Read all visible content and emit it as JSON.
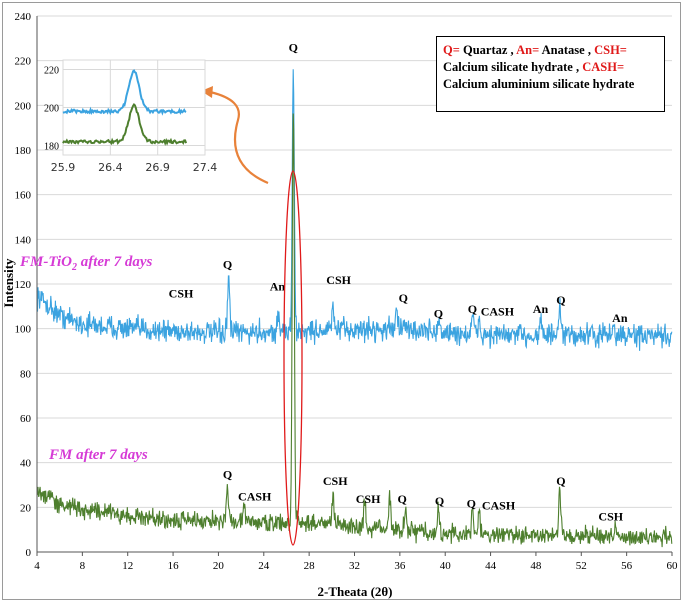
{
  "chart_data": {
    "type": "line",
    "xlabel": "2-Theata (2θ)",
    "ylabel": "Intensity",
    "xlim": [
      4,
      60
    ],
    "ylim": [
      0,
      240
    ],
    "xticks": [
      "4",
      "8",
      "12",
      "16",
      "20",
      "24",
      "28",
      "32",
      "36",
      "40",
      "44",
      "48",
      "52",
      "56",
      "60"
    ],
    "yticks": [
      "0",
      "20",
      "40",
      "60",
      "80",
      "100",
      "120",
      "140",
      "160",
      "180",
      "200",
      "220",
      "240"
    ],
    "series": [
      {
        "name": "FM-TiO2 after 7 days",
        "label_main": "FM-TiO",
        "label_sub": "2",
        "label_rest": " after 7 days",
        "color": "#3ba3e0",
        "baseline": [
          [
            4,
            115
          ],
          [
            6,
            106
          ],
          [
            8,
            102
          ],
          [
            12,
            100
          ],
          [
            20,
            98
          ],
          [
            28,
            99
          ],
          [
            36,
            100
          ],
          [
            40,
            98
          ],
          [
            44,
            97
          ],
          [
            50,
            97
          ],
          [
            56,
            97
          ],
          [
            60,
            96
          ]
        ],
        "noise": 3.2,
        "peaks": [
          [
            20.9,
            123
          ],
          [
            25.3,
            106
          ],
          [
            26.6,
            213
          ],
          [
            30.1,
            110
          ],
          [
            35.7,
            111
          ],
          [
            39.4,
            104
          ],
          [
            42.4,
            106
          ],
          [
            43.0,
            104
          ],
          [
            48.4,
            105
          ],
          [
            50.1,
            108
          ],
          [
            54.8,
            101
          ]
        ]
      },
      {
        "name": "FM after 7 days",
        "label_main": "FM after 7 days",
        "color": "#4e7f2e",
        "baseline": [
          [
            4,
            27
          ],
          [
            6,
            22
          ],
          [
            8,
            19
          ],
          [
            12,
            16
          ],
          [
            16,
            14
          ],
          [
            20,
            14
          ],
          [
            24,
            13
          ],
          [
            28,
            13
          ],
          [
            32,
            12
          ],
          [
            36,
            10
          ],
          [
            40,
            8
          ],
          [
            44,
            8
          ],
          [
            50,
            7
          ],
          [
            56,
            7
          ],
          [
            60,
            7
          ]
        ],
        "noise": 2.6,
        "peaks": [
          [
            20.8,
            30
          ],
          [
            22.3,
            20
          ],
          [
            26.6,
            200
          ],
          [
            30.1,
            25
          ],
          [
            32.9,
            20
          ],
          [
            35.1,
            24
          ],
          [
            36.5,
            20
          ],
          [
            39.4,
            21
          ],
          [
            42.4,
            19
          ],
          [
            43.0,
            17
          ],
          [
            50.1,
            28
          ],
          [
            55.0,
            11
          ]
        ]
      }
    ],
    "annotations": [
      {
        "text": "Q",
        "x": 26.6,
        "y": 224
      },
      {
        "text": "Q",
        "x": 20.8,
        "y": 127
      },
      {
        "text": "CSH",
        "x": 16.7,
        "y": 114
      },
      {
        "text": "An",
        "x": 25.2,
        "y": 117
      },
      {
        "text": "CSH",
        "x": 30.6,
        "y": 120
      },
      {
        "text": "Q",
        "x": 36.3,
        "y": 112
      },
      {
        "text": "Q",
        "x": 39.4,
        "y": 105
      },
      {
        "text": "Q",
        "x": 42.4,
        "y": 107
      },
      {
        "text": "CASH",
        "x": 44.6,
        "y": 106
      },
      {
        "text": "An",
        "x": 48.4,
        "y": 107
      },
      {
        "text": "Q",
        "x": 50.2,
        "y": 111
      },
      {
        "text": "An",
        "x": 55.4,
        "y": 103
      },
      {
        "text": "Q",
        "x": 20.8,
        "y": 33
      },
      {
        "text": "CASH",
        "x": 23.2,
        "y": 23
      },
      {
        "text": "CSH",
        "x": 30.3,
        "y": 30
      },
      {
        "text": "CSH",
        "x": 33.2,
        "y": 22
      },
      {
        "text": "Q",
        "x": 36.2,
        "y": 22
      },
      {
        "text": "Q",
        "x": 39.5,
        "y": 21
      },
      {
        "text": "Q",
        "x": 42.3,
        "y": 20
      },
      {
        "text": "CASH",
        "x": 44.7,
        "y": 19
      },
      {
        "text": "Q",
        "x": 50.2,
        "y": 30
      },
      {
        "text": "CSH",
        "x": 54.6,
        "y": 14
      }
    ],
    "inset": {
      "xticks": [
        "25.9",
        "26.4",
        "26.9",
        "27.4"
      ],
      "xlim": [
        25.9,
        27.4
      ],
      "ylim": [
        175,
        225
      ],
      "yticks": [
        "180",
        "200",
        "220"
      ]
    }
  },
  "legend": {
    "q_key": "Q=",
    "q_val": "Quartaz ,",
    "an_key": "An=",
    "an_val": "Anatase ,",
    "csh_key": "CSH=",
    "csh_val": "Calcium silicate hydrate ,",
    "cash_key": "CASH=",
    "cash_val": "Calcium aluminium silicate hydrate"
  },
  "colors": {
    "tio2": "#3ba3e0",
    "fm": "#4e7f2e",
    "ellipse": "#e01a1a",
    "arrow": "#e8823a",
    "label": "#d63bd6"
  }
}
